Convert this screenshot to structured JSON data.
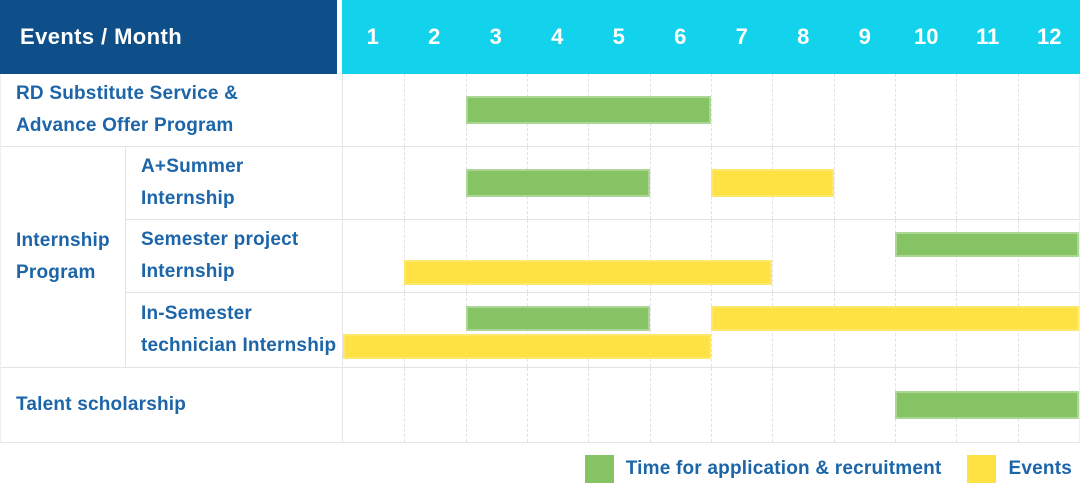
{
  "header": {
    "title": "Events / Month",
    "months": [
      "1",
      "2",
      "3",
      "4",
      "5",
      "6",
      "7",
      "8",
      "9",
      "10",
      "11",
      "12"
    ]
  },
  "colors": {
    "header_bg": "#0e4e89",
    "month_header_bg": "#12d2ec",
    "label_text": "#1b65a8",
    "application": "#85c365",
    "event": "#fee243",
    "grid_line": "#e4e4e4"
  },
  "table": {
    "group": {
      "label_lines": [
        "Internship",
        "Program"
      ]
    },
    "rows": [
      {
        "name": "rd-substitute-service",
        "span": "full",
        "label_lines": [
          "RD Substitute Service &",
          "Advance Offer Program"
        ],
        "bars": [
          {
            "kind": "application",
            "start_month": 3,
            "end_month": 6,
            "line": "single"
          }
        ]
      },
      {
        "name": "a-plus-summer-internship",
        "span": "sub",
        "label_lines": [
          "A+Summer",
          "Internship"
        ],
        "bars": [
          {
            "kind": "application",
            "start_month": 3,
            "end_month": 5,
            "line": "single"
          },
          {
            "kind": "event",
            "start_month": 7,
            "end_month": 8,
            "line": "single"
          }
        ]
      },
      {
        "name": "semester-project-internship",
        "span": "sub",
        "label_lines": [
          "Semester project",
          "Internship"
        ],
        "bars": [
          {
            "kind": "application",
            "start_month": 10,
            "end_month": 12,
            "line": "top"
          },
          {
            "kind": "event",
            "start_month": 2,
            "end_month": 7,
            "line": "bottom"
          }
        ]
      },
      {
        "name": "in-semester-technician-internship",
        "span": "sub",
        "label_lines": [
          "In-Semester",
          "technician Internship"
        ],
        "bars": [
          {
            "kind": "application",
            "start_month": 3,
            "end_month": 5,
            "line": "top"
          },
          {
            "kind": "event",
            "start_month": 7,
            "end_month": 12,
            "line": "top"
          },
          {
            "kind": "event",
            "start_month": 1,
            "end_month": 6,
            "line": "bottom"
          }
        ]
      },
      {
        "name": "talent-scholarship",
        "span": "full",
        "label_lines": [
          "Talent scholarship"
        ],
        "bars": [
          {
            "kind": "application",
            "start_month": 10,
            "end_month": 12,
            "line": "single"
          }
        ]
      }
    ]
  },
  "legend": {
    "items": [
      {
        "kind": "application",
        "label": "Time for application & recruitment"
      },
      {
        "kind": "event",
        "label": "Events"
      }
    ]
  },
  "chart_data": {
    "type": "bar",
    "variant": "gantt",
    "title": "Events / Month",
    "x_axis": {
      "label": "Month",
      "ticks": [
        1,
        2,
        3,
        4,
        5,
        6,
        7,
        8,
        9,
        10,
        11,
        12
      ],
      "range": [
        1,
        12
      ]
    },
    "grid": true,
    "legend_position": "bottom-right",
    "legend": [
      {
        "name": "Time for application & recruitment",
        "color": "#85c365"
      },
      {
        "name": "Events",
        "color": "#fee243"
      }
    ],
    "rows": [
      {
        "label": "RD Substitute Service & Advance Offer Program",
        "group": null,
        "segments": [
          {
            "series": "Time for application & recruitment",
            "start_month": 3,
            "end_month": 6
          }
        ]
      },
      {
        "label": "A+Summer Internship",
        "group": "Internship Program",
        "segments": [
          {
            "series": "Time for application & recruitment",
            "start_month": 3,
            "end_month": 5
          },
          {
            "series": "Events",
            "start_month": 7,
            "end_month": 8
          }
        ]
      },
      {
        "label": "Semester project Internship",
        "group": "Internship Program",
        "segments": [
          {
            "series": "Time for application & recruitment",
            "start_month": 10,
            "end_month": 12
          },
          {
            "series": "Events",
            "start_month": 2,
            "end_month": 7
          }
        ]
      },
      {
        "label": "In-Semester technician Internship",
        "group": "Internship Program",
        "segments": [
          {
            "series": "Time for application & recruitment",
            "start_month": 3,
            "end_month": 5
          },
          {
            "series": "Events",
            "start_month": 7,
            "end_month": 12
          },
          {
            "series": "Events",
            "start_month": 1,
            "end_month": 6
          }
        ]
      },
      {
        "label": "Talent scholarship",
        "group": null,
        "segments": [
          {
            "series": "Time for application & recruitment",
            "start_month": 10,
            "end_month": 12
          }
        ]
      }
    ]
  }
}
